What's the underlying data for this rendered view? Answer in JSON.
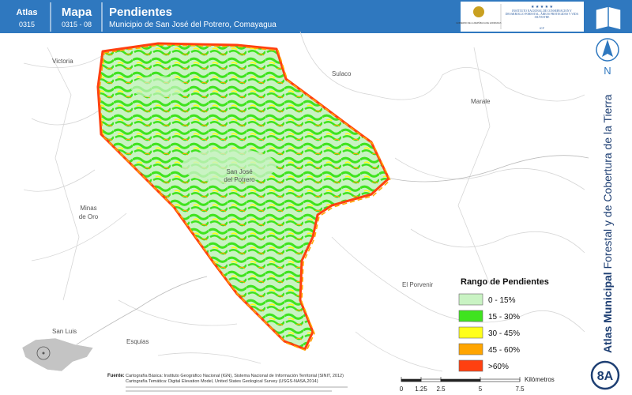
{
  "header": {
    "atlas_label": "Atlas",
    "atlas_code": "0315",
    "map_label": "Mapa",
    "map_code": "0315 - 08",
    "title": "Pendientes",
    "subtitle": "Municipio de San José del Potrero, Comayagua"
  },
  "logos": {
    "left": "GOBIERNO DE LA REPÚBLICA DE HONDURAS",
    "right": "INSTITUTO NACIONAL DE CONSERVACIÓN Y DESARROLLO FORESTAL, ÁREAS PROTEGIDAS Y VIDA SILVESTRE",
    "right_short": "ICF"
  },
  "north": "N",
  "sidebar": {
    "title_bold": "Atlas Municipal",
    "title_rest": "Forestal y de Cobertura de la Tierra",
    "page": "8A"
  },
  "places": {
    "victoria": "Victoria",
    "sulaco": "Sulaco",
    "marale": "Marale",
    "san_jose": [
      "San José",
      "del Potrero"
    ],
    "minas_de_oro": [
      "Minas",
      "de Oro"
    ],
    "el_porvenir": "El Porvenir",
    "san_luis": "San Luis",
    "esquias": "Esquias"
  },
  "legend": {
    "title": "Rango de Pendientes",
    "items": [
      {
        "label": "0 - 15%",
        "color": "#c9f3c3"
      },
      {
        "label": "15 - 30%",
        "color": "#3fe31f"
      },
      {
        "label": "30 - 45%",
        "color": "#ffff1a"
      },
      {
        "label": "45 - 60%",
        "color": "#ffa500"
      },
      {
        "label": ">60%",
        "color": "#ff4010"
      }
    ]
  },
  "scale": {
    "ticks": [
      0,
      1.25,
      2.5,
      5,
      7.5
    ],
    "unit": "Kilómetros"
  },
  "source": {
    "label": "Fuente:",
    "lines": [
      "Cartografía Básica: Instituto Geográfico Nacional (IGN), Sistema Nacional de Información Territorial (SINIT, 2012)",
      "Cartografía Temática: Digital Elevation Model, United States Geological Survey (USGS-NASA,2014)"
    ]
  }
}
